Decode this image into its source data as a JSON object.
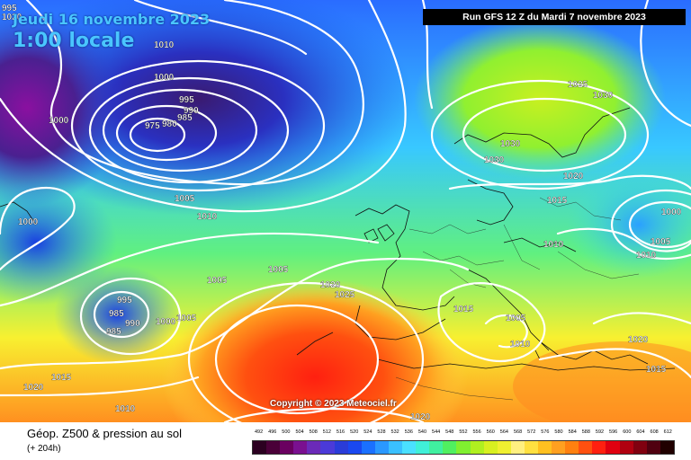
{
  "header": {
    "date": "Jeudi 16 novembre 2023",
    "time": "1:00 locale",
    "run": "Run GFS 12 Z du Mardi 7 novembre 2023"
  },
  "copyright": "Copyright © 2023 Meteociel.fr",
  "footer": {
    "title": "Géop. Z500 & pression au sol",
    "subtitle": "(+ 204h)"
  },
  "legend": {
    "values": [
      "492",
      "496",
      "500",
      "504",
      "508",
      "512",
      "516",
      "520",
      "524",
      "528",
      "532",
      "536",
      "540",
      "544",
      "548",
      "552",
      "556",
      "560",
      "564",
      "568",
      "572",
      "576",
      "580",
      "584",
      "588",
      "592",
      "596",
      "600",
      "604",
      "608",
      "612"
    ],
    "colors": [
      "#2b0020",
      "#4a0038",
      "#6a0060",
      "#7a1090",
      "#6b2ab8",
      "#4b3ad8",
      "#2a3cd8",
      "#1a48f0",
      "#1a70ff",
      "#2a98ff",
      "#3ac0ff",
      "#4ae0ff",
      "#40f0d8",
      "#40f0a0",
      "#50f060",
      "#80f030",
      "#b0f020",
      "#d8f020",
      "#f0f030",
      "#fff080",
      "#ffe040",
      "#ffc020",
      "#ffa020",
      "#ff8010",
      "#ff5010",
      "#ff2010",
      "#e00010",
      "#b00010",
      "#800010",
      "#500010",
      "#200000"
    ]
  },
  "pressure_labels": [
    "995",
    "1010",
    "1000",
    "995",
    "990",
    "985",
    "975",
    "980",
    "1000",
    "1005",
    "1010",
    "1000",
    "995",
    "985",
    "990",
    "985",
    "1000",
    "1005",
    "1005",
    "1005",
    "1015",
    "1010",
    "1020",
    "1020",
    "1025",
    "1020",
    "1025",
    "1030",
    "1030",
    "1030",
    "1020",
    "1015",
    "1000",
    "1005",
    "1010",
    "1010",
    "1015",
    "1005",
    "1010",
    "1020",
    "1015",
    "1020"
  ]
}
